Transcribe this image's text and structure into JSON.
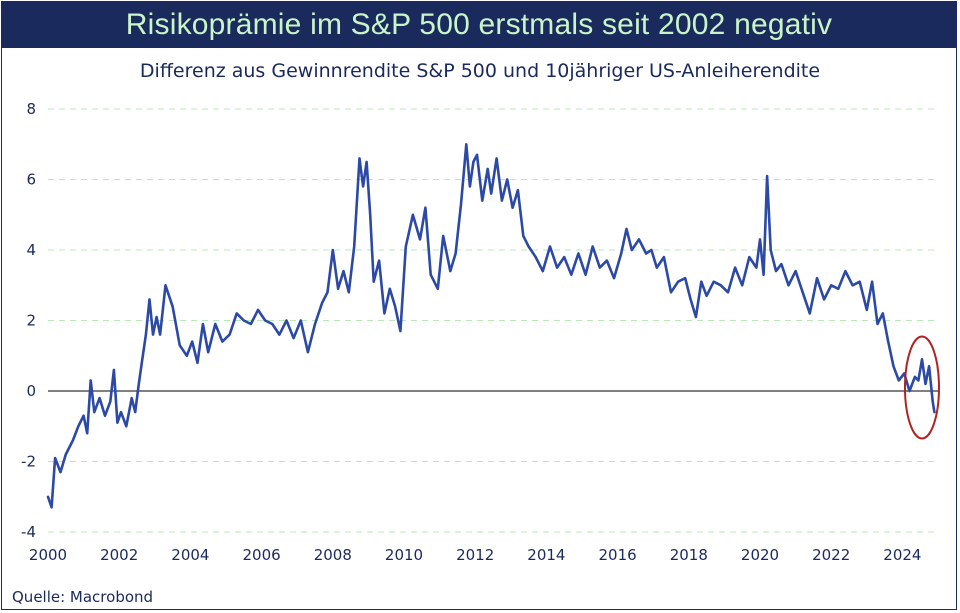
{
  "colors": {
    "header_bg": "#1b2a5c",
    "title_text": "#c9f5c8",
    "series_line": "#2c4aa5",
    "gridline": "#b8e8b8",
    "zero_line": "#000000",
    "highlight_circle": "#b22222",
    "text": "#1b2a5c"
  },
  "chart_data": {
    "type": "line",
    "title": "Risikoprämie im S&P 500 erstmals seit 2002 negativ",
    "subtitle": "Differenz aus Gewinnrendite S&P 500 und 10jähriger US-Anleiherendite",
    "source": "Quelle: Macrobond",
    "xlim": [
      2000,
      2025
    ],
    "ylim": [
      -4,
      8
    ],
    "xticks": [
      "2000",
      "2002",
      "2004",
      "2006",
      "2008",
      "2010",
      "2012",
      "2014",
      "2016",
      "2018",
      "2020",
      "2022",
      "2024"
    ],
    "yticks": [
      "8",
      "6",
      "4",
      "2",
      "0",
      "-2",
      "-4"
    ],
    "grid": "horizontal dashed",
    "reference_line": 0,
    "highlight": "circle around end of 2024",
    "series": [
      {
        "x": [
          2000.0,
          2000.1,
          2000.2,
          2000.35,
          2000.5,
          2000.7,
          2000.85,
          2001.0,
          2001.1,
          2001.2,
          2001.3,
          2001.45,
          2001.6,
          2001.75,
          2001.85,
          2001.95,
          2002.05,
          2002.2,
          2002.35,
          2002.45,
          2002.55,
          2002.65,
          2002.75,
          2002.85,
          2002.95,
          2003.05,
          2003.15,
          2003.3,
          2003.5,
          2003.7,
          2003.9,
          2004.05,
          2004.2,
          2004.35,
          2004.5,
          2004.7,
          2004.9,
          2005.1,
          2005.3,
          2005.5,
          2005.7,
          2005.9,
          2006.1,
          2006.3,
          2006.5,
          2006.7,
          2006.9,
          2007.1,
          2007.3,
          2007.5,
          2007.7,
          2007.85,
          2008.0,
          2008.15,
          2008.3,
          2008.45,
          2008.6,
          2008.75,
          2008.85,
          2008.95,
          2009.05,
          2009.15,
          2009.3,
          2009.45,
          2009.6,
          2009.75,
          2009.9,
          2010.05,
          2010.25,
          2010.45,
          2010.6,
          2010.75,
          2010.95,
          2011.1,
          2011.3,
          2011.45,
          2011.6,
          2011.75,
          2011.85,
          2011.95,
          2012.05,
          2012.2,
          2012.35,
          2012.45,
          2012.6,
          2012.75,
          2012.9,
          2013.05,
          2013.2,
          2013.35,
          2013.5,
          2013.7,
          2013.9,
          2014.1,
          2014.3,
          2014.5,
          2014.7,
          2014.9,
          2015.1,
          2015.3,
          2015.5,
          2015.7,
          2015.9,
          2016.1,
          2016.25,
          2016.4,
          2016.6,
          2016.8,
          2016.95,
          2017.1,
          2017.3,
          2017.5,
          2017.7,
          2017.9,
          2018.05,
          2018.2,
          2018.35,
          2018.5,
          2018.7,
          2018.9,
          2019.1,
          2019.3,
          2019.5,
          2019.7,
          2019.9,
          2020.0,
          2020.1,
          2020.2,
          2020.3,
          2020.45,
          2020.6,
          2020.8,
          2021.0,
          2021.2,
          2021.4,
          2021.6,
          2021.8,
          2022.0,
          2022.2,
          2022.4,
          2022.6,
          2022.8,
          2023.0,
          2023.15,
          2023.3,
          2023.45,
          2023.6,
          2023.75,
          2023.9,
          2024.05,
          2024.2,
          2024.35,
          2024.45,
          2024.55,
          2024.65,
          2024.75,
          2024.85,
          2024.9
        ],
        "y": [
          -3.0,
          -3.3,
          -1.9,
          -2.3,
          -1.8,
          -1.4,
          -1.0,
          -0.7,
          -1.2,
          0.3,
          -0.6,
          -0.2,
          -0.7,
          -0.3,
          0.6,
          -0.9,
          -0.6,
          -1.0,
          -0.2,
          -0.6,
          0.2,
          0.9,
          1.6,
          2.6,
          1.6,
          2.1,
          1.6,
          3.0,
          2.4,
          1.3,
          1.0,
          1.4,
          0.8,
          1.9,
          1.1,
          1.9,
          1.4,
          1.6,
          2.2,
          2.0,
          1.9,
          2.3,
          2.0,
          1.9,
          1.6,
          2.0,
          1.5,
          2.0,
          1.1,
          1.9,
          2.5,
          2.8,
          4.0,
          2.9,
          3.4,
          2.8,
          4.1,
          6.6,
          5.8,
          6.5,
          5.0,
          3.1,
          3.7,
          2.2,
          2.9,
          2.4,
          1.7,
          4.1,
          5.0,
          4.3,
          5.2,
          3.3,
          2.9,
          4.4,
          3.4,
          3.9,
          5.3,
          7.0,
          5.8,
          6.5,
          6.7,
          5.4,
          6.3,
          5.6,
          6.6,
          5.4,
          6.0,
          5.2,
          5.7,
          4.4,
          4.1,
          3.8,
          3.4,
          4.1,
          3.5,
          3.8,
          3.3,
          3.9,
          3.3,
          4.1,
          3.5,
          3.7,
          3.2,
          3.9,
          4.6,
          4.0,
          4.3,
          3.9,
          4.0,
          3.5,
          3.8,
          2.8,
          3.1,
          3.2,
          2.6,
          2.1,
          3.1,
          2.7,
          3.1,
          3.0,
          2.8,
          3.5,
          3.0,
          3.8,
          3.5,
          4.3,
          3.3,
          6.1,
          4.0,
          3.4,
          3.6,
          3.0,
          3.4,
          2.8,
          2.2,
          3.2,
          2.6,
          3.0,
          2.9,
          3.4,
          3.0,
          3.1,
          2.3,
          3.1,
          1.9,
          2.2,
          1.4,
          0.7,
          0.3,
          0.5,
          0.0,
          0.4,
          0.3,
          0.9,
          0.2,
          0.7,
          -0.3,
          -0.6
        ]
      }
    ]
  }
}
